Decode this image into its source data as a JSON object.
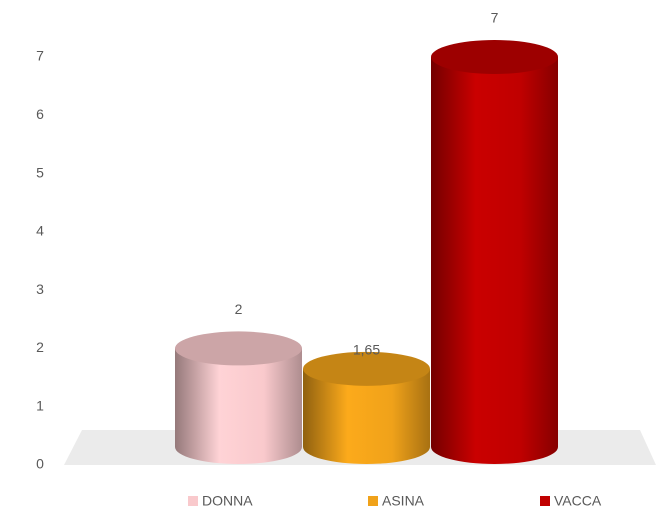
{
  "chart_data": {
    "type": "bar",
    "categories": [
      null
    ],
    "series": [
      {
        "name": "DONNA",
        "color": "#f9c9cc",
        "values": [
          2
        ]
      },
      {
        "name": "ASINA",
        "color": "#f0a21a",
        "values": [
          1.65
        ],
        "value_labels": [
          "1,65"
        ]
      },
      {
        "name": "VACCA",
        "color": "#c00000",
        "values": [
          7
        ]
      }
    ],
    "ylim": [
      0,
      7
    ],
    "yticks": [
      0,
      1,
      2,
      3,
      4,
      5,
      6,
      7
    ],
    "grid": false,
    "legend": "bottom"
  }
}
